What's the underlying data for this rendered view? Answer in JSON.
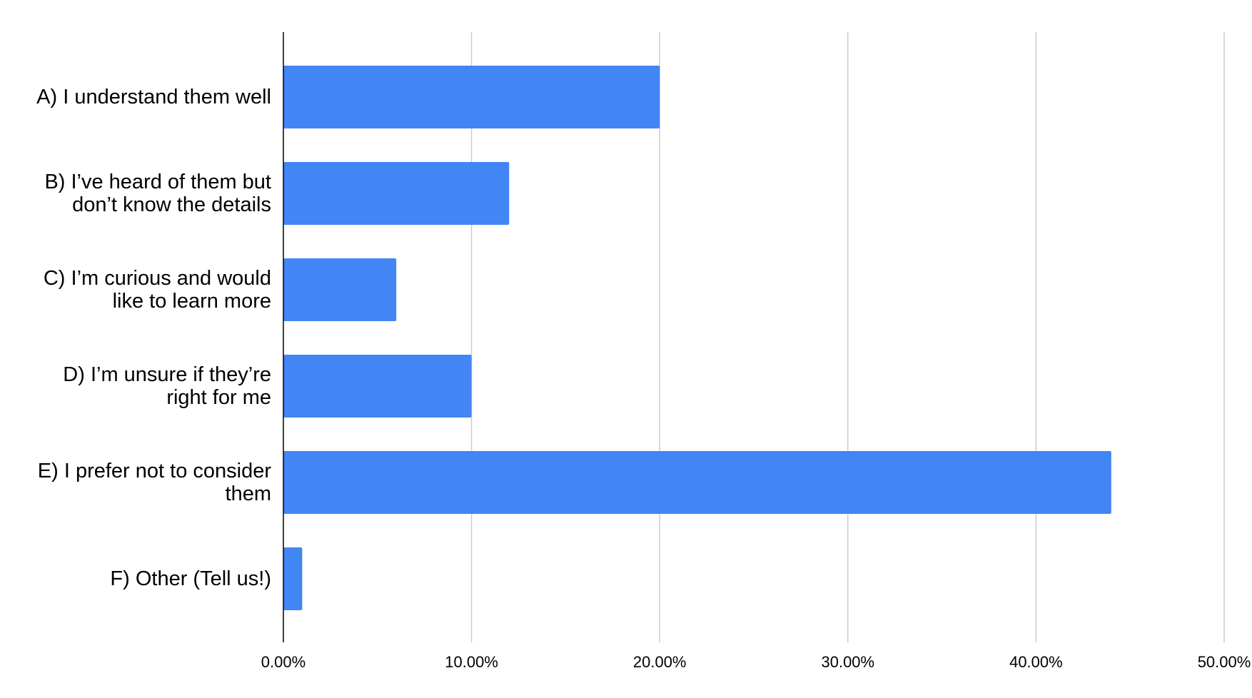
{
  "chart_data": {
    "type": "bar",
    "orientation": "horizontal",
    "categories": [
      "A) I understand them well",
      "B) I’ve heard of them but don’t know the details",
      "C) I’m curious and would like to learn more",
      "D) I’m unsure if they’re right for me",
      "E) I prefer not to consider them",
      "F) Other (Tell us!)"
    ],
    "values": [
      20,
      12,
      6,
      10,
      44,
      1
    ],
    "color": "#4285f4",
    "xlim": [
      0,
      50
    ],
    "xticks": [
      {
        "value": 0,
        "label": "0.00%"
      },
      {
        "value": 10,
        "label": "10.00%"
      },
      {
        "value": 20,
        "label": "20.00%"
      },
      {
        "value": 30,
        "label": "30.00%"
      },
      {
        "value": 40,
        "label": "40.00%"
      },
      {
        "value": 50,
        "label": "50.00%"
      }
    ],
    "grid": true
  }
}
